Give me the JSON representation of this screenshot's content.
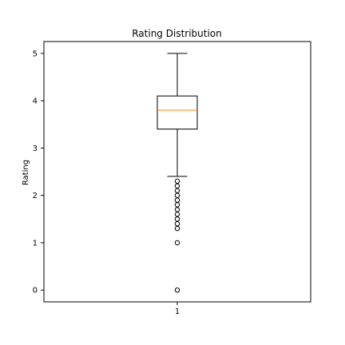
{
  "chart_data": {
    "type": "box",
    "title": "Rating Distribution",
    "xlabel": "",
    "ylabel": "Rating",
    "categories": [
      "1"
    ],
    "ylim": [
      -0.25,
      5.25
    ],
    "yticks": [
      0,
      1,
      2,
      3,
      4,
      5
    ],
    "boxes": [
      {
        "category": "1",
        "whisker_low": 2.4,
        "q1": 3.4,
        "median": 3.8,
        "q3": 4.1,
        "whisker_high": 5.0,
        "outliers": [
          2.3,
          2.2,
          2.1,
          2.0,
          1.9,
          1.8,
          1.7,
          1.6,
          1.5,
          1.4,
          1.3,
          1.0,
          0.0
        ]
      }
    ],
    "median_color": "#ff7f0e",
    "box_color": "#000000",
    "grid": false,
    "legend": "none"
  }
}
